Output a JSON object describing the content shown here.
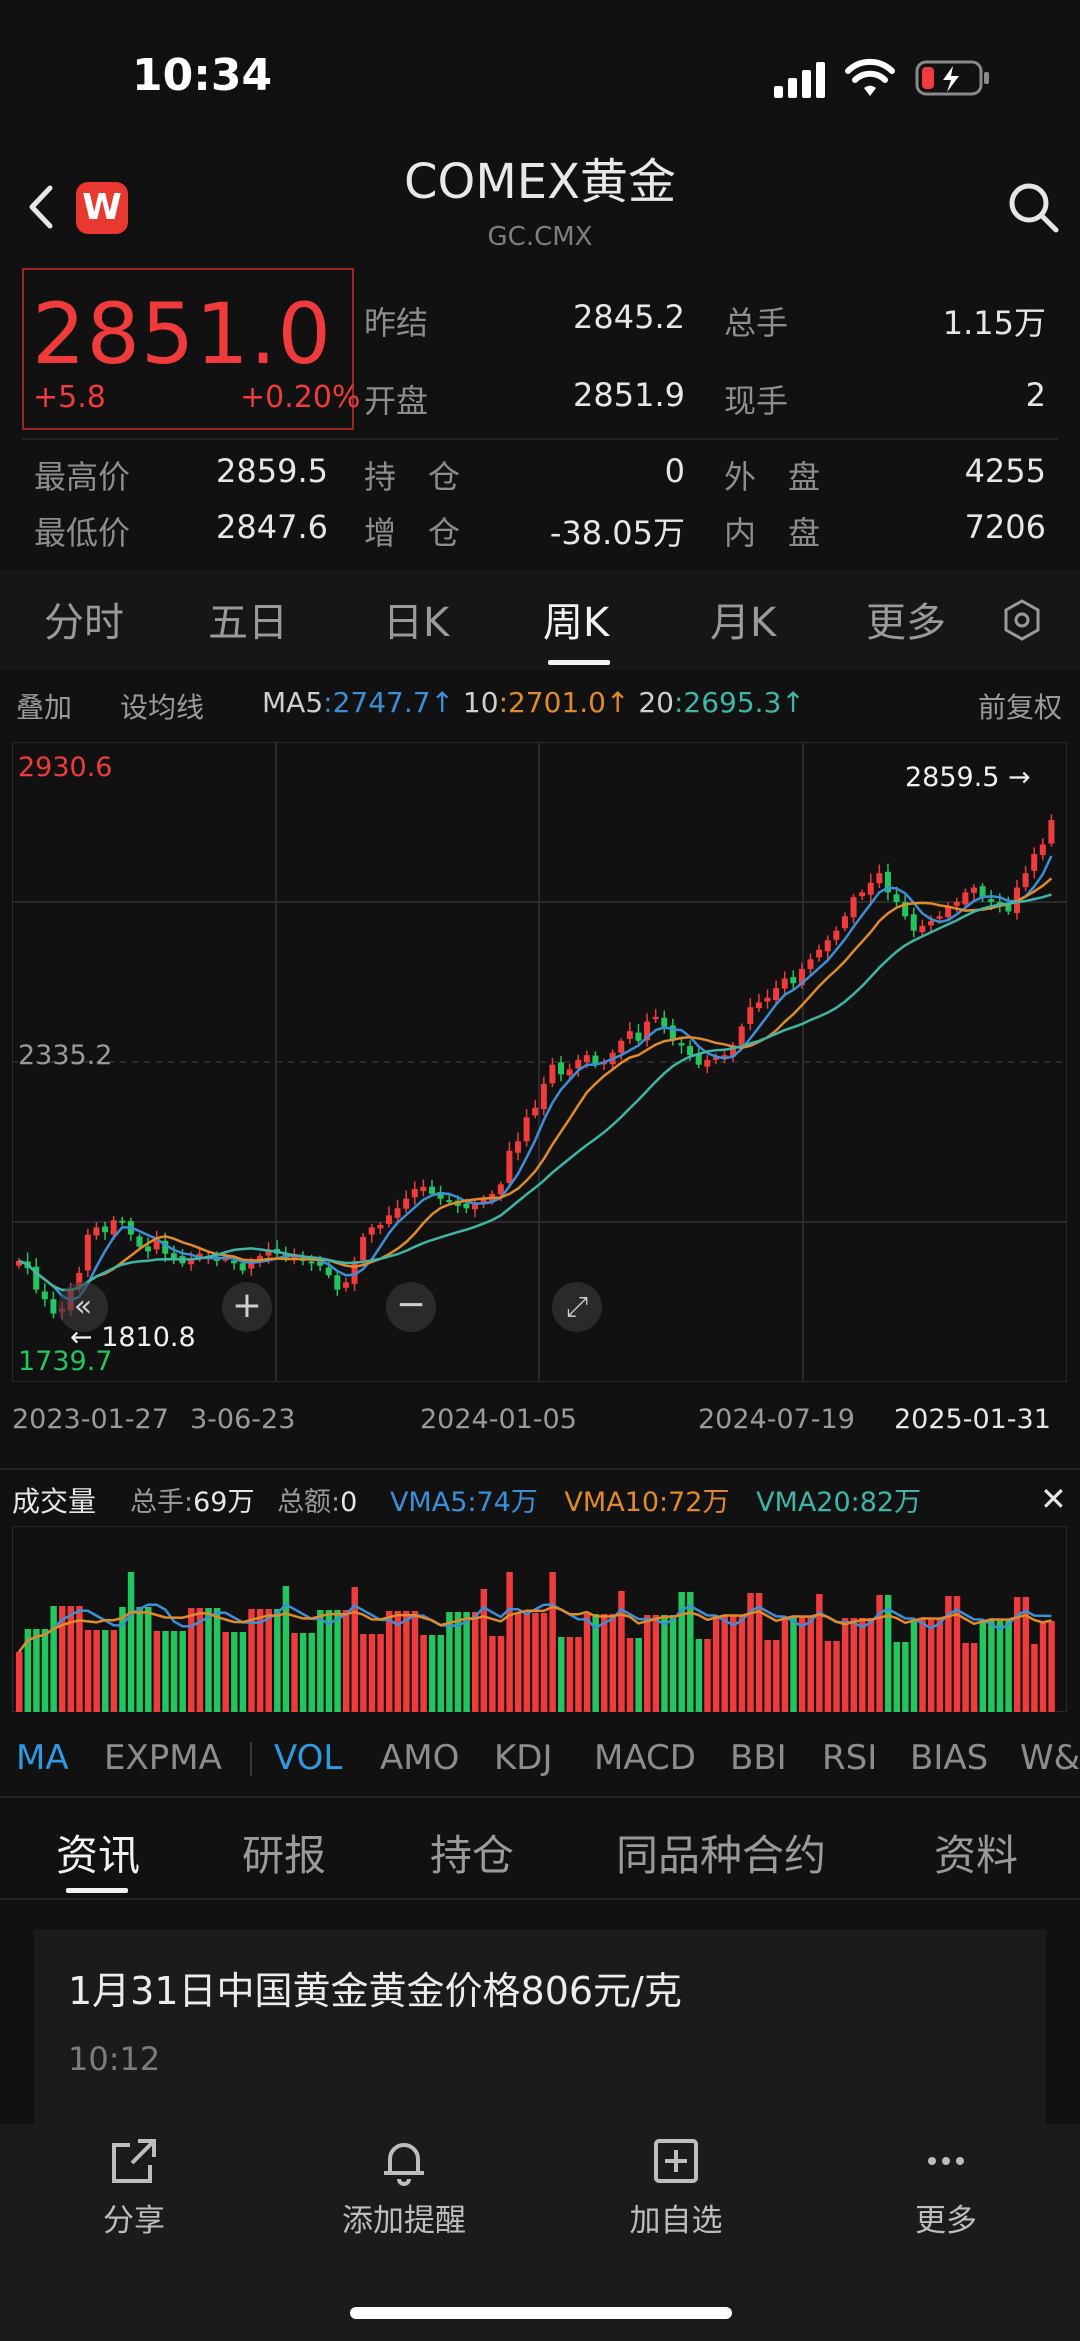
{
  "status_bar": {
    "time": "10:34"
  },
  "header": {
    "title": "COMEX黄金",
    "subtitle": "GC.CMX",
    "back_icon": "chevron-left-icon",
    "app_icon_letter": "W",
    "search_icon": "search-icon"
  },
  "quote": {
    "price": "2851.0",
    "change": "+5.8",
    "change_pct": "+0.20%",
    "rows": [
      {
        "l1": "昨结",
        "v1": "2845.2",
        "l2": "总手",
        "v2": "1.15万"
      },
      {
        "l1": "开盘",
        "v1": "2851.9",
        "l2": "现手",
        "v2": "2"
      }
    ],
    "rows2": [
      {
        "l0": "最高价",
        "v0": "2859.5",
        "l1": "持　仓",
        "v1": "0",
        "l2": "外　盘",
        "v2": "4255"
      },
      {
        "l0": "最低价",
        "v0": "2847.6",
        "l1": "增　仓",
        "v1": "-38.05万",
        "l2": "内　盘",
        "v2": "7206"
      }
    ]
  },
  "period_tabs": [
    "分时",
    "五日",
    "日K",
    "周K",
    "月K",
    "更多"
  ],
  "active_period": "周K",
  "ma_bar": {
    "overlay": "叠加",
    "set_ma": "设均线",
    "ma5_label": "MA5",
    "ma5_value": ":2747.7↑",
    "ma10_label": "10",
    "ma10_value": ":2701.0↑",
    "ma20_label": "20",
    "ma20_value": ":2695.3↑",
    "adjust": "前复权",
    "colors": {
      "ma5": "#3b8fd9",
      "ma10": "#e08a2a",
      "ma20": "#3fb5a7"
    }
  },
  "chart_data": {
    "type": "candlestick",
    "y_labels": {
      "top": "2930.6",
      "mid": "2335.2",
      "bottom": "1739.7"
    },
    "ylim": [
      1739.7,
      2930.6
    ],
    "annotations": {
      "high": "2859.5 →",
      "low": "← 1810.8"
    },
    "x_labels": [
      "2023-01-27",
      "3-06-23",
      "2024-01-05",
      "2024-07-19",
      "2025-01-31"
    ],
    "closes": [
      1930,
      1915,
      1870,
      1850,
      1820,
      1830,
      1870,
      1905,
      1985,
      2000,
      1990,
      2015,
      2010,
      1985,
      1960,
      1950,
      1975,
      1945,
      1935,
      1925,
      1935,
      1945,
      1940,
      1930,
      1935,
      1925,
      1910,
      1930,
      1940,
      1950,
      1945,
      1935,
      1940,
      1930,
      1925,
      1920,
      1900,
      1870,
      1885,
      1930,
      1980,
      2000,
      2005,
      2025,
      2040,
      2060,
      2080,
      2085,
      2070,
      2060,
      2055,
      2045,
      2040,
      2050,
      2060,
      2070,
      2090,
      2160,
      2180,
      2230,
      2250,
      2300,
      2340,
      2320,
      2330,
      2350,
      2360,
      2340,
      2345,
      2365,
      2390,
      2410,
      2390,
      2430,
      2440,
      2420,
      2390,
      2380,
      2360,
      2340,
      2350,
      2355,
      2360,
      2380,
      2420,
      2460,
      2470,
      2480,
      2500,
      2520,
      2510,
      2540,
      2560,
      2580,
      2600,
      2620,
      2650,
      2690,
      2700,
      2720,
      2740,
      2700,
      2680,
      2650,
      2620,
      2630,
      2640,
      2650,
      2670,
      2680,
      2700,
      2710,
      2690,
      2680,
      2670,
      2660,
      2710,
      2740,
      2780,
      2800,
      2851
    ]
  },
  "chart_controls": {
    "rewind_icon": "double-chevron-left-icon",
    "zoom_in_icon": "plus-icon",
    "zoom_out_icon": "minus-icon",
    "fullscreen_icon": "expand-icon"
  },
  "volume": {
    "title": "成交量",
    "total_hand": "总手:",
    "total_hand_value": "69万",
    "total_amount": "总额:",
    "total_amount_value": "0",
    "vma5": "VMA5:74万",
    "vma10": "VMA10:72万",
    "vma20": "VMA20:82万",
    "close_icon": "close-icon"
  },
  "indicator_tabs": [
    "MA",
    "EXPMA",
    "VOL",
    "AMO",
    "KDJ",
    "MACD",
    "BBI",
    "RSI",
    "BIAS",
    "W&"
  ],
  "news_tabs": [
    "资讯",
    "研报",
    "持仓",
    "同品种合约",
    "资料"
  ],
  "active_news_tab": "资讯",
  "news": [
    {
      "title": "1月31日中国黄金黄金价格806元/克",
      "time": "10:12"
    }
  ],
  "bottom_bar": [
    {
      "label": "分享",
      "icon": "share-icon"
    },
    {
      "label": "添加提醒",
      "icon": "bell-icon"
    },
    {
      "label": "加自选",
      "icon": "add-square-icon"
    },
    {
      "label": "更多",
      "icon": "more-dots-icon"
    }
  ],
  "colors": {
    "up": "#ef3b3b",
    "down": "#22c55e",
    "background": "#111112",
    "accent_blue": "#2f9ae0"
  }
}
